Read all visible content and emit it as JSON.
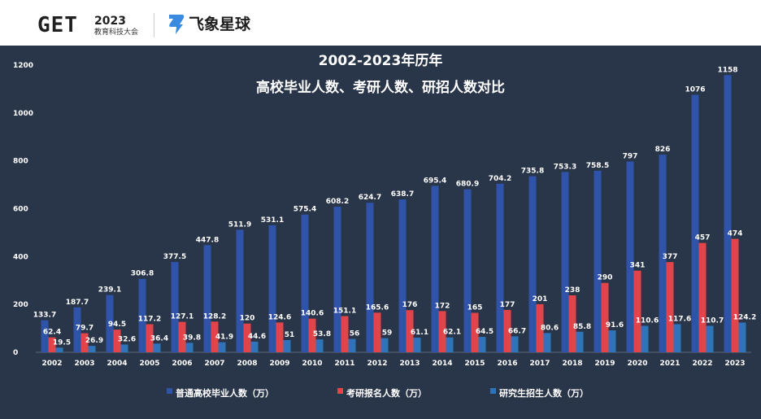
{
  "header": {
    "get_mark": "GET",
    "get_year": "2023",
    "get_subtitle": "教育科技大会",
    "brand_name": "飞象星球"
  },
  "colors": {
    "background": "#293548",
    "graduates": "#2e53a8",
    "exam_applicants": "#e3444a",
    "enrollment": "#2d75b8"
  },
  "chart_data": {
    "type": "bar",
    "title": "2002-2023年历年",
    "subtitle": "高校毕业人数、考研人数、研招人数对比",
    "categories": [
      "2002",
      "2003",
      "2004",
      "2005",
      "2006",
      "2007",
      "2008",
      "2009",
      "2010",
      "2011",
      "2012",
      "2013",
      "2014",
      "2015",
      "2016",
      "2017",
      "2018",
      "2019",
      "2020",
      "2021",
      "2022",
      "2023"
    ],
    "series": [
      {
        "name": "普通高校毕业人数（万）",
        "values": [
          133.7,
          187.7,
          239.1,
          306.8,
          377.5,
          447.8,
          511.9,
          531.1,
          575.4,
          608.2,
          624.7,
          638.7,
          695.4,
          680.9,
          704.2,
          735.8,
          753.3,
          758.5,
          797,
          826,
          1076,
          1158
        ]
      },
      {
        "name": "考研报名人数（万）",
        "values": [
          62.4,
          79.7,
          94.5,
          117.2,
          127.1,
          128.2,
          120,
          124.6,
          140.6,
          151.1,
          165.6,
          176,
          172,
          165,
          177,
          201,
          238,
          290,
          341,
          377,
          457,
          474
        ]
      },
      {
        "name": "研究生招生人数（万）",
        "values": [
          19.5,
          26.9,
          32.6,
          36.4,
          39.8,
          41.9,
          44.6,
          51,
          53.8,
          56,
          59,
          61.1,
          62.1,
          64.5,
          66.7,
          80.6,
          85.8,
          91.6,
          110.6,
          117.6,
          110.7,
          124.2
        ]
      }
    ],
    "ylim": [
      0,
      1200
    ],
    "yticks": [
      0,
      200,
      400,
      600,
      800,
      1000,
      1200
    ],
    "legend_position": "bottom"
  }
}
